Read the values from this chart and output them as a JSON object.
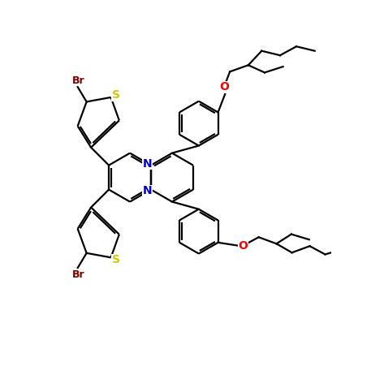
{
  "bg_color": "#ffffff",
  "bond_color": "#000000",
  "N_color": "#0000cd",
  "S_color": "#cccc00",
  "Br_color": "#800000",
  "O_color": "#ff0000",
  "lw": 1.6,
  "dbo": 0.07,
  "figsize": [
    4.57,
    4.51
  ],
  "dpi": 100,
  "xlim": [
    0,
    9.5
  ],
  "ylim": [
    0,
    9.5
  ]
}
